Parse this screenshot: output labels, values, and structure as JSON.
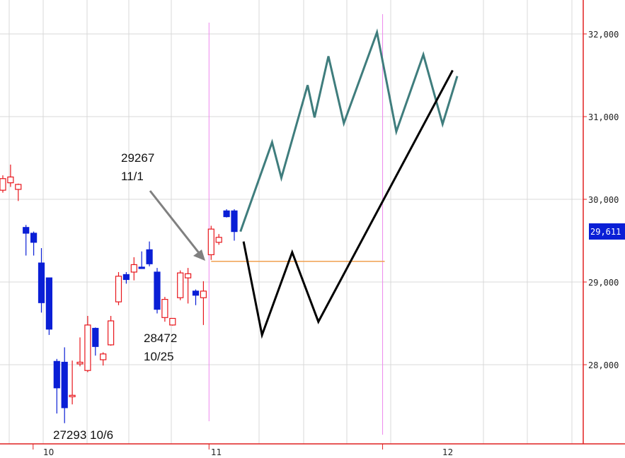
{
  "chart_data": {
    "type": "candlestick",
    "x_tick_labels": [
      "10",
      "11",
      "12"
    ],
    "y_tick_labels": [
      "28,000",
      "29,000",
      "30,000",
      "31,000",
      "32,000"
    ],
    "y_tick_values": [
      28000,
      29000,
      30000,
      31000,
      32000
    ],
    "ylim": [
      27050,
      32400
    ],
    "last_price_label": "29,611",
    "last_price_value": 29611,
    "colors": {
      "up": "#e8161c",
      "down": "#0a1fd6",
      "grid": "#d9d9d9",
      "axis": "#e02020",
      "month_marker": "#ee88ee",
      "support": "#f0a050",
      "forecast_green": "#3f7d7d",
      "forecast_black": "#000000",
      "arrow": "#808080",
      "last_price_bg": "#0a1fd6"
    },
    "candles": [
      {
        "o": 30110,
        "h": 30290,
        "l": 30080,
        "c": 30250
      },
      {
        "o": 30200,
        "h": 30420,
        "l": 30150,
        "c": 30270
      },
      {
        "o": 30120,
        "h": 30190,
        "l": 29980,
        "c": 30180
      },
      {
        "o": 29660,
        "h": 29690,
        "l": 29320,
        "c": 29590
      },
      {
        "o": 29590,
        "h": 29610,
        "l": 29320,
        "c": 29480
      },
      {
        "o": 29230,
        "h": 29410,
        "l": 28630,
        "c": 28750
      },
      {
        "o": 29050,
        "h": 29050,
        "l": 28360,
        "c": 28430
      },
      {
        "o": 28040,
        "h": 28070,
        "l": 27410,
        "c": 27720
      },
      {
        "o": 28030,
        "h": 28210,
        "l": 27293,
        "c": 27480
      },
      {
        "o": 27620,
        "h": 28050,
        "l": 27520,
        "c": 27630
      },
      {
        "o": 28010,
        "h": 28330,
        "l": 27980,
        "c": 28030
      },
      {
        "o": 27930,
        "h": 28590,
        "l": 27910,
        "c": 28480
      },
      {
        "o": 28440,
        "h": 28450,
        "l": 28110,
        "c": 28220
      },
      {
        "o": 28060,
        "h": 28150,
        "l": 27990,
        "c": 28130
      },
      {
        "o": 28240,
        "h": 28590,
        "l": 28230,
        "c": 28530
      },
      {
        "o": 28760,
        "h": 29120,
        "l": 28720,
        "c": 29070
      },
      {
        "o": 29090,
        "h": 29120,
        "l": 28980,
        "c": 29030
      },
      {
        "o": 29120,
        "h": 29300,
        "l": 29020,
        "c": 29210
      },
      {
        "o": 29180,
        "h": 29370,
        "l": 29170,
        "c": 29170
      },
      {
        "o": 29390,
        "h": 29490,
        "l": 29190,
        "c": 29220
      },
      {
        "o": 29120,
        "h": 29170,
        "l": 28620,
        "c": 28670
      },
      {
        "o": 28570,
        "h": 28820,
        "l": 28520,
        "c": 28790
      },
      {
        "o": 28480,
        "h": 28520,
        "l": 28472,
        "c": 28560
      },
      {
        "o": 28810,
        "h": 29140,
        "l": 28780,
        "c": 29110
      },
      {
        "o": 29050,
        "h": 29170,
        "l": 28740,
        "c": 29100
      },
      {
        "o": 28890,
        "h": 28910,
        "l": 28720,
        "c": 28840
      },
      {
        "o": 28810,
        "h": 29010,
        "l": 28480,
        "c": 28890
      },
      {
        "o": 29330,
        "h": 29680,
        "l": 29267,
        "c": 29640
      },
      {
        "o": 29480,
        "h": 29580,
        "l": 29450,
        "c": 29540
      },
      {
        "o": 29860,
        "h": 29880,
        "l": 29780,
        "c": 29790
      },
      {
        "o": 29860,
        "h": 29880,
        "l": 29500,
        "c": 29610
      }
    ],
    "support_line": {
      "from_index": 27,
      "to_index": 49.5,
      "y": 29250
    },
    "forecast_green": [
      {
        "i": 30.8,
        "y": 29610
      },
      {
        "i": 34.9,
        "y": 30690
      },
      {
        "i": 36.1,
        "y": 30260
      },
      {
        "i": 39.5,
        "y": 31380
      },
      {
        "i": 40.4,
        "y": 30990
      },
      {
        "i": 42.2,
        "y": 31730
      },
      {
        "i": 44.2,
        "y": 30920
      },
      {
        "i": 48.5,
        "y": 32020
      },
      {
        "i": 51.0,
        "y": 30820
      },
      {
        "i": 54.5,
        "y": 31750
      },
      {
        "i": 57.0,
        "y": 30910
      },
      {
        "i": 58.9,
        "y": 31490
      }
    ],
    "forecast_black": [
      {
        "i": 31.2,
        "y": 29490
      },
      {
        "i": 33.6,
        "y": 28360
      },
      {
        "i": 37.5,
        "y": 29360
      },
      {
        "i": 40.9,
        "y": 28520
      },
      {
        "i": 58.3,
        "y": 31560
      }
    ],
    "month_markers": [
      27,
      49.5
    ],
    "x_tick_positions": [
      4.2,
      27,
      49.5
    ],
    "annotations": [
      {
        "lines": [
          "29267",
          "11/1"
        ]
      },
      {
        "lines": [
          "28472",
          "10/25"
        ]
      },
      {
        "lines": [
          "27293 10/6"
        ]
      }
    ]
  }
}
